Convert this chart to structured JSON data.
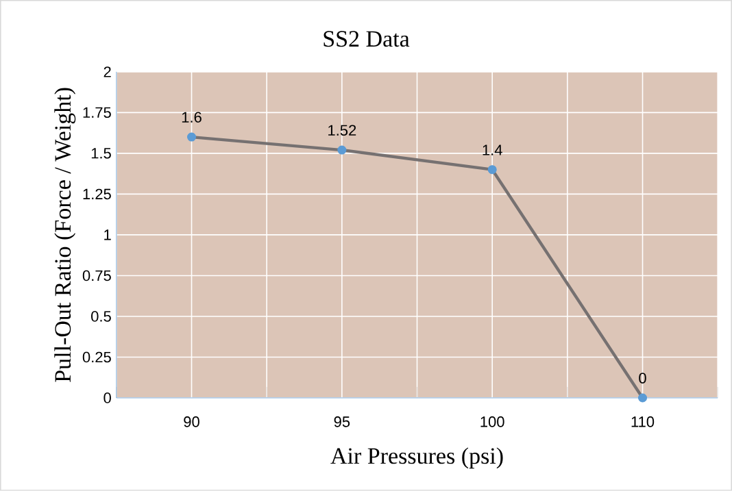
{
  "chart_data": {
    "type": "line",
    "title": "SS2 Data",
    "xlabel": "Air Pressures (psi)",
    "ylabel": "Pull-Out  Ratio (Force / Weight)",
    "categories": [
      "90",
      "95",
      "100",
      "110"
    ],
    "series": [
      {
        "color": "#767171",
        "colors": [
          "#5b9bd5",
          "#5b9bd5",
          "#5b9bd5",
          "#5b9bd5"
        ],
        "values": [
          1.6,
          1.52,
          1.4,
          0
        ]
      }
    ],
    "ylim": [
      0,
      2
    ],
    "yticks": [
      0,
      0.25,
      0.5,
      0.75,
      1,
      1.25,
      1.5,
      1.75,
      2
    ],
    "grid": true,
    "marker": "circle",
    "line_style": "solid",
    "data_labels": true
  }
}
